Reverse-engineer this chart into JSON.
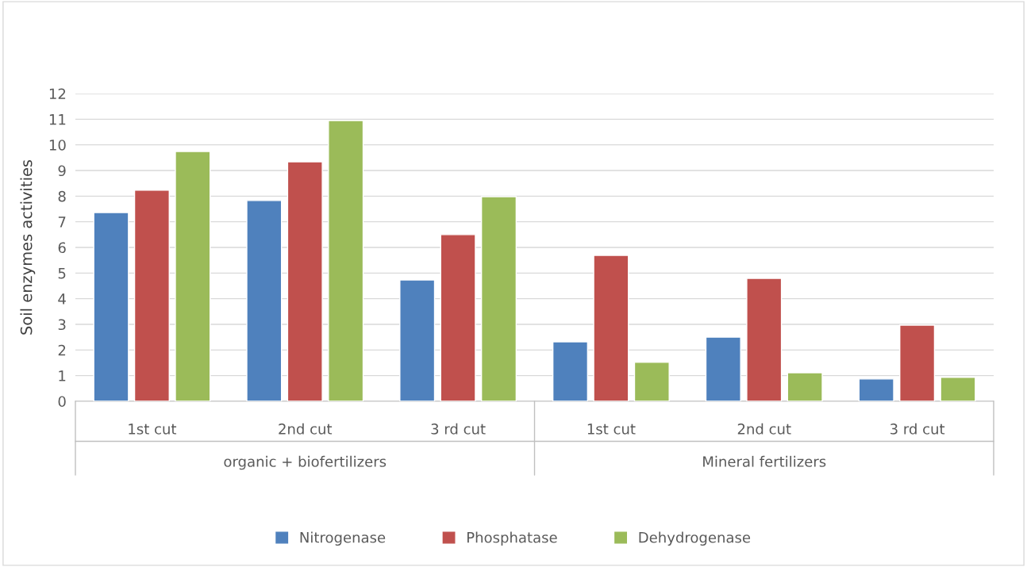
{
  "chart_data": {
    "type": "bar",
    "ylabel": "Soil enzymes activities",
    "categories": [
      "1st cut",
      "2nd cut",
      "3 rd cut",
      "1st cut",
      "2nd cut",
      "3 rd cut"
    ],
    "series": [
      {
        "name": "Nitrogenase",
        "color": "#4f81bd",
        "values": [
          7.36,
          7.83,
          4.73,
          2.32,
          2.5,
          0.87
        ]
      },
      {
        "name": "Phosphatase",
        "color": "#c0504d",
        "values": [
          8.23,
          9.34,
          6.5,
          5.69,
          4.79,
          2.97
        ]
      },
      {
        "name": "Dehydrogenase",
        "color": "#9bbb59",
        "values": [
          9.74,
          10.95,
          7.98,
          1.52,
          1.11,
          0.93
        ]
      }
    ],
    "annotations": [
      "organic + biofertilizers",
      "Mineral fertilizers"
    ],
    "ylim": [
      0,
      12
    ],
    "yticks": [
      0,
      1,
      2,
      3,
      4,
      5,
      6,
      7,
      8,
      9,
      10,
      11,
      12
    ],
    "grid": "y",
    "legend": "bottom"
  }
}
